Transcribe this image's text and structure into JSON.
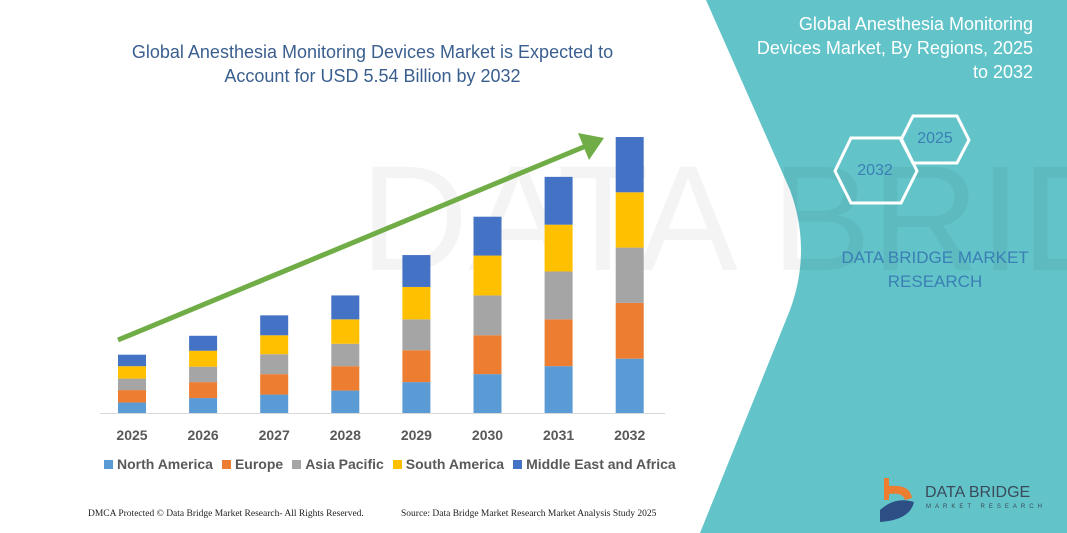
{
  "header": {
    "title": "Global Anesthesia Monitoring Devices Market is Expected to Account for USD 5.54 Billion by 2032"
  },
  "side_panel": {
    "title": "Global Anesthesia Monitoring Devices Market, By Regions, 2025 to 2032",
    "hex_start": "2025",
    "hex_end": "2032",
    "brand": "DATA BRIDGE MARKET RESEARCH",
    "panel_color": "#62C4C9",
    "logo_text": "DATA BRIDGE",
    "logo_subtext": "MARKET RESEARCH"
  },
  "footer": {
    "left": "DMCA Protected © Data Bridge Market Research- All Rights Reserved.",
    "right": "Source: Data Bridge Market Research  Market Analysis Study 2025"
  },
  "chart_data": {
    "type": "bar",
    "stacked": true,
    "title": "Global Anesthesia Monitoring Devices Market is Expected to Account for USD 5.54 Billion by 2032",
    "xlabel": "",
    "ylabel": "",
    "categories": [
      "2025",
      "2026",
      "2027",
      "2028",
      "2029",
      "2030",
      "2031",
      "2032"
    ],
    "ylim": [
      0,
      5.54
    ],
    "grid": false,
    "legend_position": "bottom",
    "trend_arrow_color": "#70AD47",
    "series": [
      {
        "name": "North America",
        "color": "#5B9BD5",
        "values": [
          0.21,
          0.3,
          0.37,
          0.45,
          0.62,
          0.78,
          0.94,
          1.09
        ]
      },
      {
        "name": "Europe",
        "color": "#ED7D31",
        "values": [
          0.25,
          0.32,
          0.41,
          0.49,
          0.64,
          0.78,
          0.94,
          1.12
        ]
      },
      {
        "name": "Asia Pacific",
        "color": "#A5A5A5",
        "values": [
          0.23,
          0.31,
          0.4,
          0.45,
          0.62,
          0.8,
          0.96,
          1.11
        ]
      },
      {
        "name": "South America",
        "color": "#FFC000",
        "values": [
          0.25,
          0.32,
          0.38,
          0.49,
          0.65,
          0.8,
          0.94,
          1.11
        ]
      },
      {
        "name": "Middle East and Africa",
        "color": "#4472C4",
        "values": [
          0.23,
          0.3,
          0.4,
          0.48,
          0.64,
          0.78,
          0.96,
          1.11
        ]
      }
    ]
  }
}
